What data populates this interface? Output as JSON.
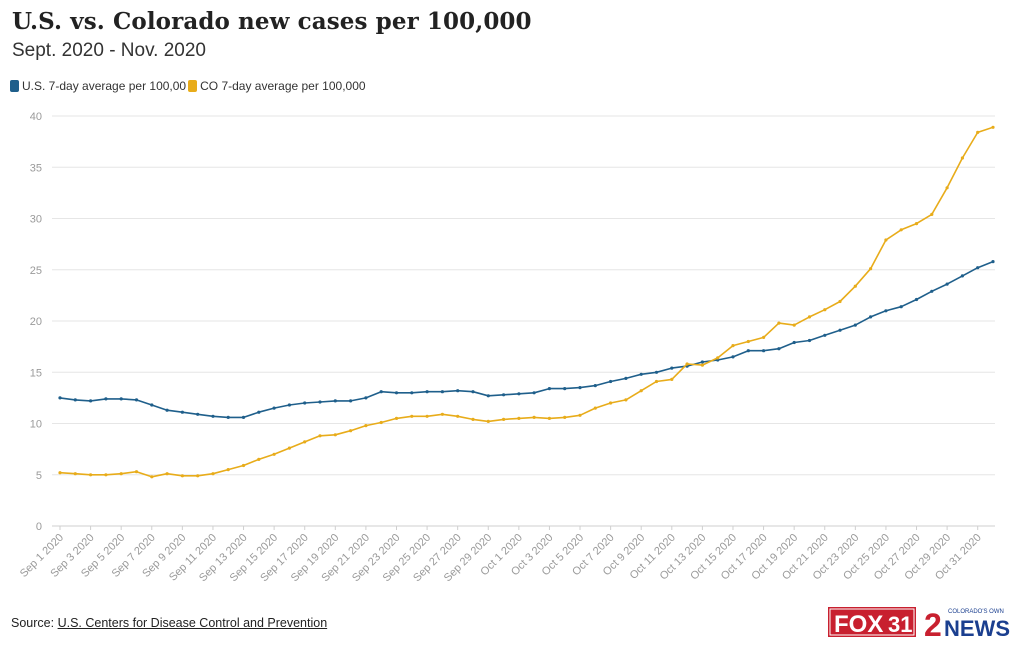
{
  "title": "U.S. vs. Colorado new cases per 100,000",
  "subtitle": "Sept. 2020 - Nov. 2020",
  "legend": {
    "us_label": "U.S. 7-day average per 100,00",
    "co_label": "CO 7-day average per 100,000"
  },
  "source": {
    "prefix": "Source:",
    "link_text": "U.S. Centers for Disease Control and Prevention"
  },
  "logos": {
    "fox_text": "FOX",
    "fox_number": "31",
    "news_number": "2",
    "news_text": "NEWS",
    "news_tagline": "COLORADO'S OWN"
  },
  "colors": {
    "us": "#1f5f8b",
    "co": "#e8ac1a",
    "grid": "#e6e6e6",
    "axis_text": "#9a9a9a",
    "fox_red": "#c8202f",
    "news_blue": "#1b3f8f"
  },
  "chart_data": {
    "type": "line",
    "title": "U.S. vs. Colorado new cases per 100,000",
    "subtitle": "Sept. 2020 - Nov. 2020",
    "xlabel": "",
    "ylabel": "",
    "ylim": [
      0,
      40
    ],
    "yticks": [
      0,
      5,
      10,
      15,
      20,
      25,
      30,
      35,
      40
    ],
    "grid": true,
    "legend_position": "top-left",
    "x_tick_labels": [
      "Sep 1 2020",
      "Sep 3 2020",
      "Sep 5 2020",
      "Sep 7 2020",
      "Sep 9 2020",
      "Sep 11 2020",
      "Sep 13 2020",
      "Sep 15 2020",
      "Sep 17 2020",
      "Sep 19 2020",
      "Sep 21 2020",
      "Sep 23 2020",
      "Sep 25 2020",
      "Sep 27 2020",
      "Sep 29 2020",
      "Oct 1 2020",
      "Oct 3 2020",
      "Oct 5 2020",
      "Oct 7 2020",
      "Oct 9 2020",
      "Oct 11 2020",
      "Oct 13 2020",
      "Oct 15 2020",
      "Oct 17 2020",
      "Oct 19 2020",
      "Oct 21 2020",
      "Oct 23 2020",
      "Oct 25 2020",
      "Oct 27 2020",
      "Oct 29 2020",
      "Oct 31 2020"
    ],
    "x_start": "2020-09-01",
    "x_end": "2020-11-01",
    "series": [
      {
        "name": "U.S. 7-day average per 100,00",
        "color": "#1f5f8b",
        "values": [
          12.5,
          12.3,
          12.2,
          12.4,
          12.4,
          12.3,
          11.8,
          11.3,
          11.1,
          10.9,
          10.7,
          10.6,
          10.6,
          11.1,
          11.5,
          11.8,
          12.0,
          12.1,
          12.2,
          12.2,
          12.5,
          13.1,
          13.0,
          13.0,
          13.1,
          13.1,
          13.2,
          13.1,
          12.7,
          12.8,
          12.9,
          13.0,
          13.4,
          13.4,
          13.5,
          13.7,
          14.1,
          14.4,
          14.8,
          15.0,
          15.4,
          15.6,
          16.0,
          16.2,
          16.5,
          17.1,
          17.1,
          17.3,
          17.9,
          18.1,
          18.6,
          19.1,
          19.6,
          20.4,
          21.0,
          21.4,
          22.1,
          22.9,
          23.6,
          24.4,
          25.2,
          25.8
        ]
      },
      {
        "name": "CO 7-day average per 100,000",
        "color": "#e8ac1a",
        "values": [
          5.2,
          5.1,
          5.0,
          5.0,
          5.1,
          5.3,
          4.8,
          5.1,
          4.9,
          4.9,
          5.1,
          5.5,
          5.9,
          6.5,
          7.0,
          7.6,
          8.2,
          8.8,
          8.9,
          9.3,
          9.8,
          10.1,
          10.5,
          10.7,
          10.7,
          10.9,
          10.7,
          10.4,
          10.2,
          10.4,
          10.5,
          10.6,
          10.5,
          10.6,
          10.8,
          11.5,
          12.0,
          12.3,
          13.2,
          14.1,
          14.3,
          15.8,
          15.7,
          16.4,
          17.6,
          18.0,
          18.4,
          19.8,
          19.6,
          20.4,
          21.1,
          21.9,
          23.4,
          25.1,
          27.9,
          28.9,
          29.5,
          30.4,
          33.0,
          35.9,
          38.4,
          38.9
        ]
      }
    ]
  }
}
